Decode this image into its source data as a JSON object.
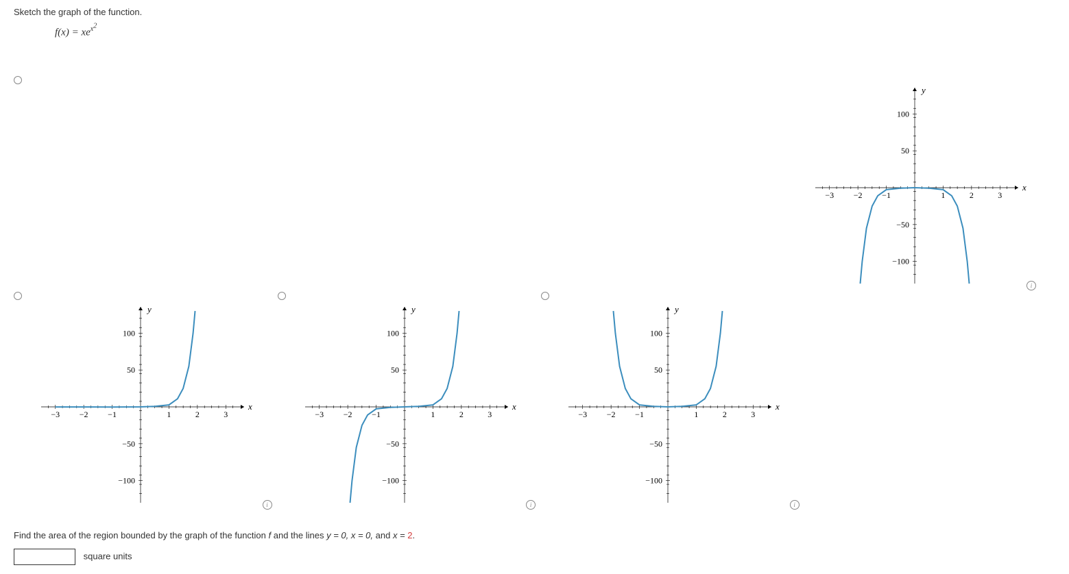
{
  "question": {
    "prompt": "Sketch the graph of the function.",
    "function_lhs": "f(x) = xe",
    "function_exp": "x",
    "function_exp2": "2"
  },
  "chart_common": {
    "xlim": [
      -3.5,
      3.5
    ],
    "ylim": [
      -130,
      130
    ],
    "xticks": [
      -3,
      -2,
      -1,
      1,
      2,
      3
    ],
    "yticks": [
      -100,
      -50,
      50,
      100
    ],
    "curve_color": "#3b8dbd",
    "axis_color": "#000000",
    "background_color": "#ffffff",
    "x_axis_label": "x",
    "y_axis_label": "y",
    "tick_fontsize": 12,
    "axislabel_fontsize": 13,
    "curve_width": 2
  },
  "choices": [
    {
      "id": "A",
      "type": "line",
      "description": "monotone increasing, flat near origin then steep right tail up",
      "points": [
        [
          -3,
          -0.1
        ],
        [
          -2,
          -0.1
        ],
        [
          -1,
          -0.2
        ],
        [
          0,
          0
        ],
        [
          0.5,
          0.7
        ],
        [
          1,
          2.7
        ],
        [
          1.3,
          11
        ],
        [
          1.5,
          25
        ],
        [
          1.7,
          55
        ],
        [
          1.85,
          100
        ],
        [
          1.92,
          130
        ]
      ]
    },
    {
      "id": "B",
      "type": "line",
      "description": "odd function, steep down-left tail and steep up-right tail",
      "points": [
        [
          -1.92,
          -130
        ],
        [
          -1.85,
          -100
        ],
        [
          -1.7,
          -55
        ],
        [
          -1.5,
          -25
        ],
        [
          -1.3,
          -11
        ],
        [
          -1,
          -2.7
        ],
        [
          -0.5,
          -0.7
        ],
        [
          0,
          0
        ],
        [
          0.5,
          0.7
        ],
        [
          1,
          2.7
        ],
        [
          1.3,
          11
        ],
        [
          1.5,
          25
        ],
        [
          1.7,
          55
        ],
        [
          1.85,
          100
        ],
        [
          1.92,
          130
        ]
      ]
    },
    {
      "id": "C",
      "type": "line",
      "description": "even U shape, both tails up",
      "points": [
        [
          -1.92,
          130
        ],
        [
          -1.85,
          100
        ],
        [
          -1.7,
          55
        ],
        [
          -1.5,
          25
        ],
        [
          -1.3,
          11
        ],
        [
          -1,
          2.7
        ],
        [
          -0.5,
          0.7
        ],
        [
          0,
          0
        ],
        [
          0.5,
          0.7
        ],
        [
          1,
          2.7
        ],
        [
          1.3,
          11
        ],
        [
          1.5,
          25
        ],
        [
          1.7,
          55
        ],
        [
          1.85,
          100
        ],
        [
          1.92,
          130
        ]
      ]
    },
    {
      "id": "D",
      "type": "line",
      "description": "inverted U, both tails down",
      "points": [
        [
          -1.92,
          -130
        ],
        [
          -1.85,
          -100
        ],
        [
          -1.7,
          -55
        ],
        [
          -1.5,
          -25
        ],
        [
          -1.3,
          -11
        ],
        [
          -1,
          -2.7
        ],
        [
          -0.5,
          -0.7
        ],
        [
          0,
          0
        ],
        [
          0.5,
          -0.7
        ],
        [
          1,
          -2.7
        ],
        [
          1.3,
          -11
        ],
        [
          1.5,
          -25
        ],
        [
          1.7,
          -55
        ],
        [
          1.85,
          -100
        ],
        [
          1.92,
          -130
        ]
      ]
    }
  ],
  "part2": {
    "prompt_pre": "Find the area of the region bounded by the graph of the function ",
    "prompt_f": "f",
    "prompt_mid": " and the lines ",
    "eq1": "y = 0, x = 0,",
    "eq_and": " and ",
    "eq2_lhs": "x = ",
    "eq2_rhs": "2",
    "eq2_dot": ".",
    "units": "square units",
    "answer_value": ""
  }
}
